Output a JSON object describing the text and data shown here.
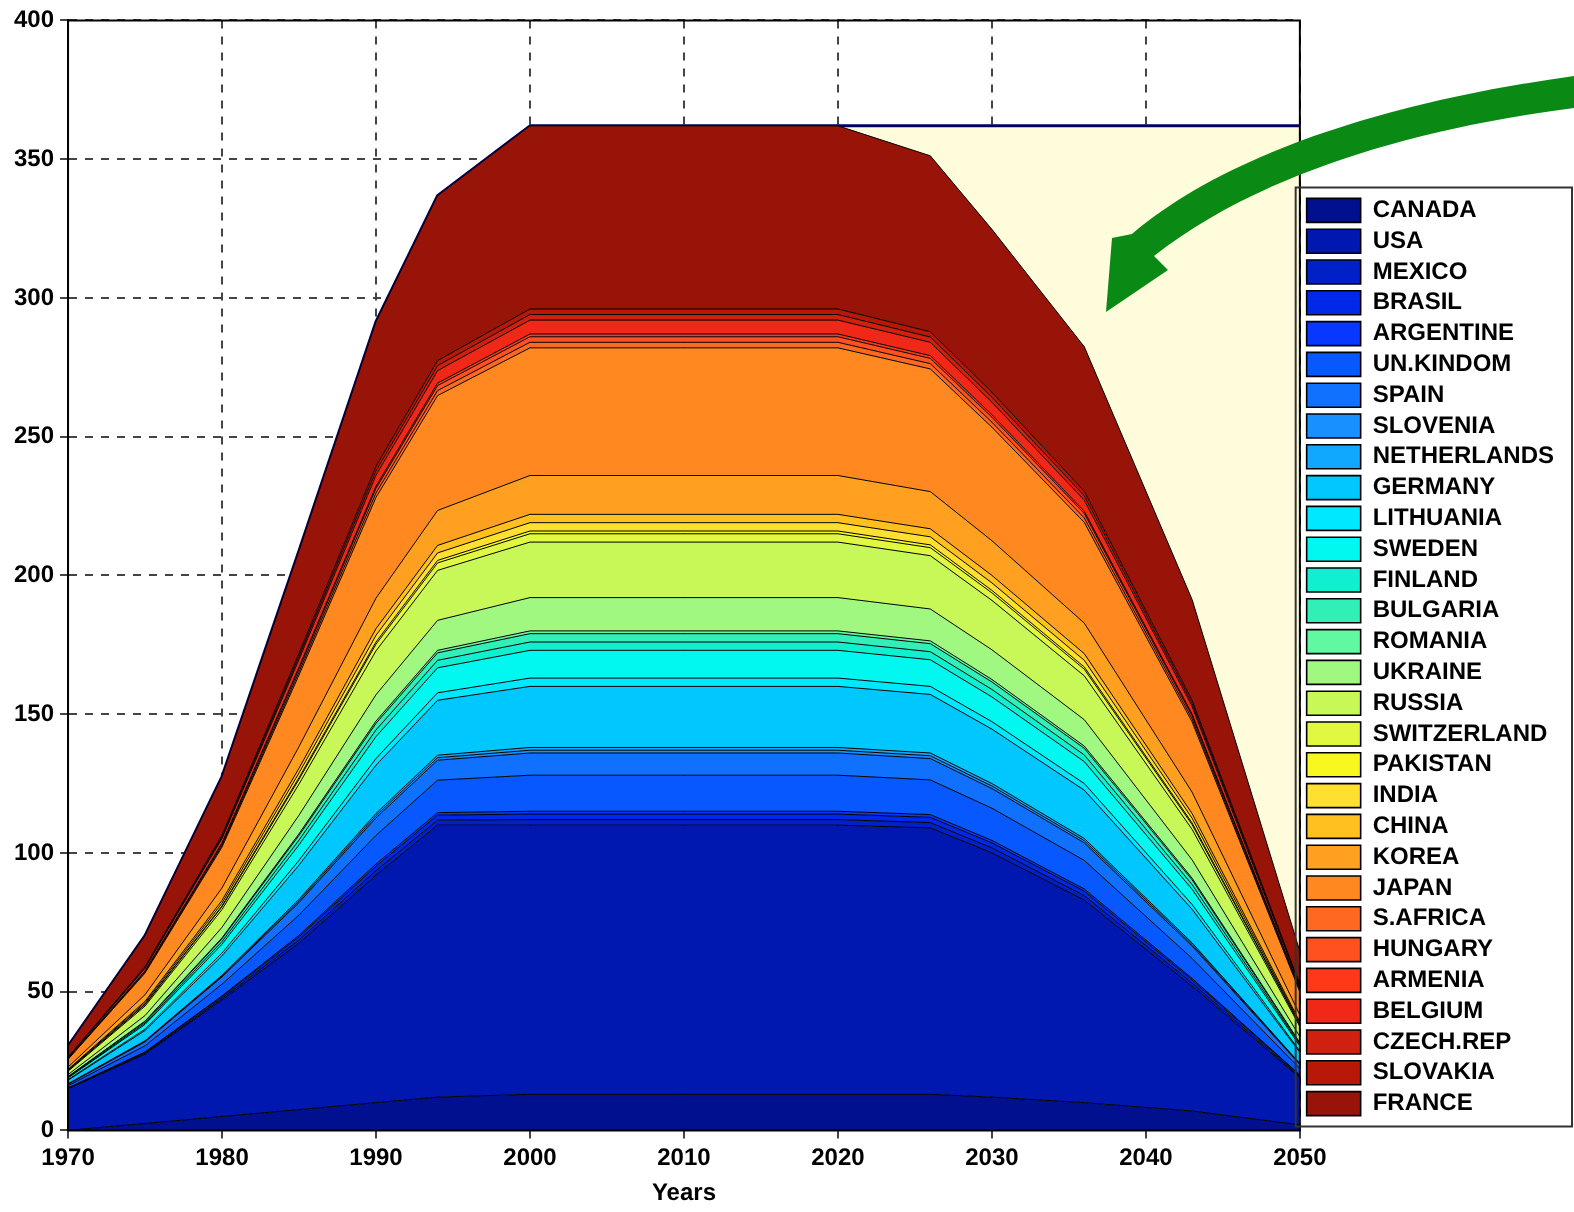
{
  "chart_data": {
    "type": "area",
    "stacked": true,
    "xlabel": "Years",
    "legend": "right",
    "grid": true,
    "line_style": "solid",
    "x": [
      1970,
      1975,
      1980,
      1985,
      1990,
      1994,
      2000,
      2020,
      2026,
      2030,
      2036,
      2043,
      2050
    ],
    "xlim": [
      1970,
      2050
    ],
    "xticks": [
      1970,
      1980,
      1990,
      2000,
      2010,
      2020,
      2030,
      2040,
      2050
    ],
    "ylim": [
      0,
      400
    ],
    "yticks": [
      0,
      50,
      100,
      150,
      200,
      250,
      300,
      350,
      400
    ],
    "series": [
      {
        "name": "CANADA",
        "color": "#00108f",
        "values": [
          0,
          2.5,
          5,
          7.5,
          10,
          12,
          13,
          13,
          13,
          12,
          10,
          7,
          2
        ]
      },
      {
        "name": "USA",
        "color": "#0018b0",
        "values": [
          15,
          25,
          42,
          60,
          82,
          98,
          97,
          97,
          96,
          88,
          73,
          45,
          17
        ]
      },
      {
        "name": "MEXICO",
        "color": "#0020c8",
        "values": [
          0.1,
          0.3,
          0.6,
          1.1,
          1.6,
          1.8,
          2,
          2,
          1.9,
          1.8,
          1.6,
          1.1,
          0.4
        ]
      },
      {
        "name": "BRASIL",
        "color": "#0028e8",
        "values": [
          0.1,
          0.3,
          0.6,
          1.1,
          1.6,
          1.8,
          2,
          2,
          1.9,
          1.8,
          1.6,
          1.1,
          0.4
        ]
      },
      {
        "name": "ARGENTINE",
        "color": "#0838ff",
        "values": [
          0.1,
          0.2,
          0.3,
          0.6,
          0.8,
          0.9,
          1,
          1,
          1,
          0.9,
          0.8,
          0.6,
          0.2
        ]
      },
      {
        "name": "UN.KINDOM",
        "color": "#0858ff",
        "values": [
          0.8,
          2.2,
          4.2,
          7.3,
          10.3,
          11.7,
          13,
          13,
          12.5,
          11.6,
          10.3,
          7.2,
          2.3
        ]
      },
      {
        "name": "SPAIN",
        "color": "#1070ff",
        "values": [
          0.5,
          1.4,
          2.6,
          4.5,
          6.3,
          7.2,
          8,
          8,
          7.7,
          7.1,
          6.3,
          4.4,
          1.4
        ]
      },
      {
        "name": "SLOVENIA",
        "color": "#1890ff",
        "values": [
          0.1,
          0.2,
          0.3,
          0.6,
          0.8,
          0.9,
          1,
          1,
          1,
          0.9,
          0.8,
          0.6,
          0.2
        ]
      },
      {
        "name": "NETHERLANDS",
        "color": "#10a8ff",
        "values": [
          0.1,
          0.2,
          0.3,
          0.6,
          0.8,
          0.9,
          1,
          1,
          1,
          0.9,
          0.8,
          0.6,
          0.2
        ]
      },
      {
        "name": "GERMANY",
        "color": "#00c8ff",
        "values": [
          1.3,
          3.7,
          7,
          12.3,
          17.4,
          19.8,
          22,
          22,
          21.1,
          19.6,
          17.4,
          12.1,
          4
        ]
      },
      {
        "name": "LITHUANIA",
        "color": "#00e8ff",
        "values": [
          0.2,
          0.5,
          1,
          1.7,
          2.4,
          2.7,
          3,
          3,
          2.9,
          2.7,
          2.4,
          1.7,
          0.5
        ]
      },
      {
        "name": "SWEDEN",
        "color": "#00f8f0",
        "values": [
          0.6,
          1.7,
          3.2,
          5.6,
          7.9,
          9,
          10,
          10,
          9.6,
          8.9,
          7.9,
          5.5,
          1.8
        ]
      },
      {
        "name": "FINLAND",
        "color": "#10f0d0",
        "values": [
          0.2,
          0.5,
          1,
          1.7,
          2.4,
          2.7,
          3,
          3,
          2.9,
          2.7,
          2.4,
          1.7,
          0.5
        ]
      },
      {
        "name": "BULGARIA",
        "color": "#30f0b8",
        "values": [
          0.2,
          0.5,
          1,
          1.7,
          2.4,
          2.7,
          3,
          3,
          2.9,
          2.7,
          2.4,
          1.7,
          0.5
        ]
      },
      {
        "name": "ROMANIA",
        "color": "#60f8a0",
        "values": [
          0.1,
          0.2,
          0.3,
          0.6,
          0.8,
          0.9,
          1,
          1,
          1,
          0.9,
          0.8,
          0.6,
          0.2
        ]
      },
      {
        "name": "UKRAINE",
        "color": "#a0f880",
        "values": [
          0.7,
          2,
          3.8,
          6.7,
          9.5,
          10.8,
          12,
          12,
          11.5,
          10.7,
          9.5,
          6.6,
          2.2
        ]
      },
      {
        "name": "RUSSIA",
        "color": "#c8f858",
        "values": [
          1.2,
          3.4,
          6.4,
          11.2,
          15.8,
          18,
          20,
          20,
          19.2,
          17.8,
          15.8,
          11,
          3.6
        ]
      },
      {
        "name": "SWITZERLAND",
        "color": "#e0f840",
        "values": [
          0.2,
          0.5,
          1,
          1.7,
          2.4,
          2.7,
          3,
          3,
          2.9,
          2.7,
          2.4,
          1.7,
          0.5
        ]
      },
      {
        "name": "PAKISTAN",
        "color": "#f8f820",
        "values": [
          0.1,
          0.2,
          0.3,
          0.6,
          0.8,
          0.9,
          1,
          1,
          1,
          0.9,
          0.8,
          0.6,
          0.2
        ]
      },
      {
        "name": "INDIA",
        "color": "#ffe030",
        "values": [
          0.2,
          0.5,
          1,
          1.7,
          2.4,
          2.7,
          3,
          3,
          2.9,
          2.7,
          2.4,
          1.7,
          0.5
        ]
      },
      {
        "name": "CHINA",
        "color": "#ffc020",
        "values": [
          0.2,
          0.5,
          1,
          1.7,
          2.4,
          2.7,
          3,
          3,
          2.9,
          2.7,
          2.4,
          1.7,
          0.5
        ]
      },
      {
        "name": "KOREA",
        "color": "#ffa020",
        "values": [
          0.8,
          2.4,
          4.5,
          7.8,
          11,
          12.6,
          14,
          14,
          13.4,
          12.5,
          11,
          7.7,
          2.5
        ]
      },
      {
        "name": "JAPAN",
        "color": "#ff8820",
        "values": [
          2.8,
          7.8,
          14.7,
          25.8,
          36.3,
          41.4,
          46,
          46,
          44.2,
          40.9,
          36.3,
          25.3,
          8.3
        ]
      },
      {
        "name": "S.AFRICA",
        "color": "#ff6820",
        "values": [
          0.1,
          0.3,
          0.6,
          1.1,
          1.6,
          1.8,
          2,
          2,
          1.9,
          1.8,
          1.6,
          1.1,
          0.4
        ]
      },
      {
        "name": "HUNGARY",
        "color": "#ff5020",
        "values": [
          0.1,
          0.3,
          0.6,
          1.1,
          1.6,
          1.8,
          2,
          2,
          1.9,
          1.8,
          1.6,
          1.1,
          0.4
        ]
      },
      {
        "name": "ARMENIA",
        "color": "#ff3818",
        "values": [
          0.1,
          0.2,
          0.3,
          0.6,
          0.8,
          0.9,
          1,
          1,
          1,
          0.9,
          0.8,
          0.6,
          0.2
        ]
      },
      {
        "name": "BELGIUM",
        "color": "#f02818",
        "values": [
          0.3,
          0.9,
          1.6,
          2.8,
          4,
          4.5,
          5,
          5,
          4.8,
          4.5,
          4,
          2.8,
          0.9
        ]
      },
      {
        "name": "CZECH.REP",
        "color": "#d02010",
        "values": [
          0.1,
          0.3,
          0.6,
          1.1,
          1.6,
          1.8,
          2,
          2,
          1.9,
          1.8,
          1.6,
          1.1,
          0.4
        ]
      },
      {
        "name": "SLOVAKIA",
        "color": "#b81808",
        "values": [
          0.1,
          0.3,
          0.6,
          1.1,
          1.6,
          1.8,
          2,
          2,
          1.9,
          1.8,
          1.6,
          1.1,
          0.4
        ]
      },
      {
        "name": "FRANCE",
        "color": "#981408",
        "values": [
          4,
          11.2,
          21.1,
          37,
          52.1,
          59.4,
          66,
          66,
          63.4,
          58.7,
          52.1,
          36.3,
          11.9
        ]
      },
      {
        "color": "#fffcdc",
        "values": [
          0,
          0,
          0,
          0,
          0,
          0,
          0,
          0,
          10.8,
          37.3,
          79.6,
          170.7,
          297.5
        ]
      }
    ]
  }
}
